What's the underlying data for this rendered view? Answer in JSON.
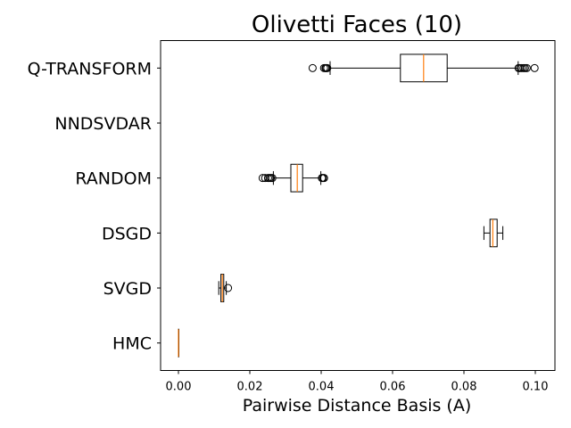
{
  "chart_data": {
    "type": "boxplot",
    "orientation": "horizontal",
    "title": "Olivetti Faces (10)",
    "xlabel": "Pairwise Distance Basis (A)",
    "ylabel": "",
    "xlim": [
      -0.005,
      0.1055
    ],
    "xticks": [
      0.0,
      0.02,
      0.04,
      0.06,
      0.08,
      0.1
    ],
    "xtick_labels": [
      "0.00",
      "0.02",
      "0.04",
      "0.06",
      "0.08",
      "0.10"
    ],
    "grid": false,
    "colors": {
      "box": "#000000",
      "median": "#ff7f0e"
    },
    "categories": [
      "Q-TRANSFORM",
      "NNDSVDAR",
      "RANDOM",
      "DSGD",
      "SVGD",
      "HMC"
    ],
    "boxes": [
      {
        "label": "Q-TRANSFORM",
        "whislo": 0.0425,
        "q1": 0.0622,
        "med": 0.0687,
        "q3": 0.0753,
        "whishi": 0.0952,
        "fliers": [
          0.0376,
          0.0408,
          0.0412,
          0.0414,
          0.0417,
          0.0953,
          0.0957,
          0.0962,
          0.0967,
          0.0971,
          0.0976,
          0.0998
        ]
      },
      {
        "label": "NNDSVDAR",
        "whislo": null,
        "q1": null,
        "med": null,
        "q3": null,
        "whishi": null,
        "fliers": []
      },
      {
        "label": "RANDOM",
        "whislo": 0.0266,
        "q1": 0.0315,
        "med": 0.0333,
        "q3": 0.0348,
        "whishi": 0.0399,
        "fliers": [
          0.0236,
          0.0243,
          0.0251,
          0.0255,
          0.0259,
          0.0263,
          0.0402,
          0.0405,
          0.0408
        ]
      },
      {
        "label": "DSGD",
        "whislo": 0.0856,
        "q1": 0.0873,
        "med": 0.0881,
        "q3": 0.0893,
        "whishi": 0.0909,
        "fliers": []
      },
      {
        "label": "SVGD",
        "whislo": 0.0113,
        "q1": 0.0119,
        "med": 0.0123,
        "q3": 0.0127,
        "whishi": 0.0134,
        "fliers": [
          0.0139
        ]
      },
      {
        "label": "HMC",
        "whislo": 0.0,
        "q1": 0.0,
        "med": 0.0,
        "q3": 0.0,
        "whishi": 0.0,
        "fliers": []
      }
    ]
  }
}
